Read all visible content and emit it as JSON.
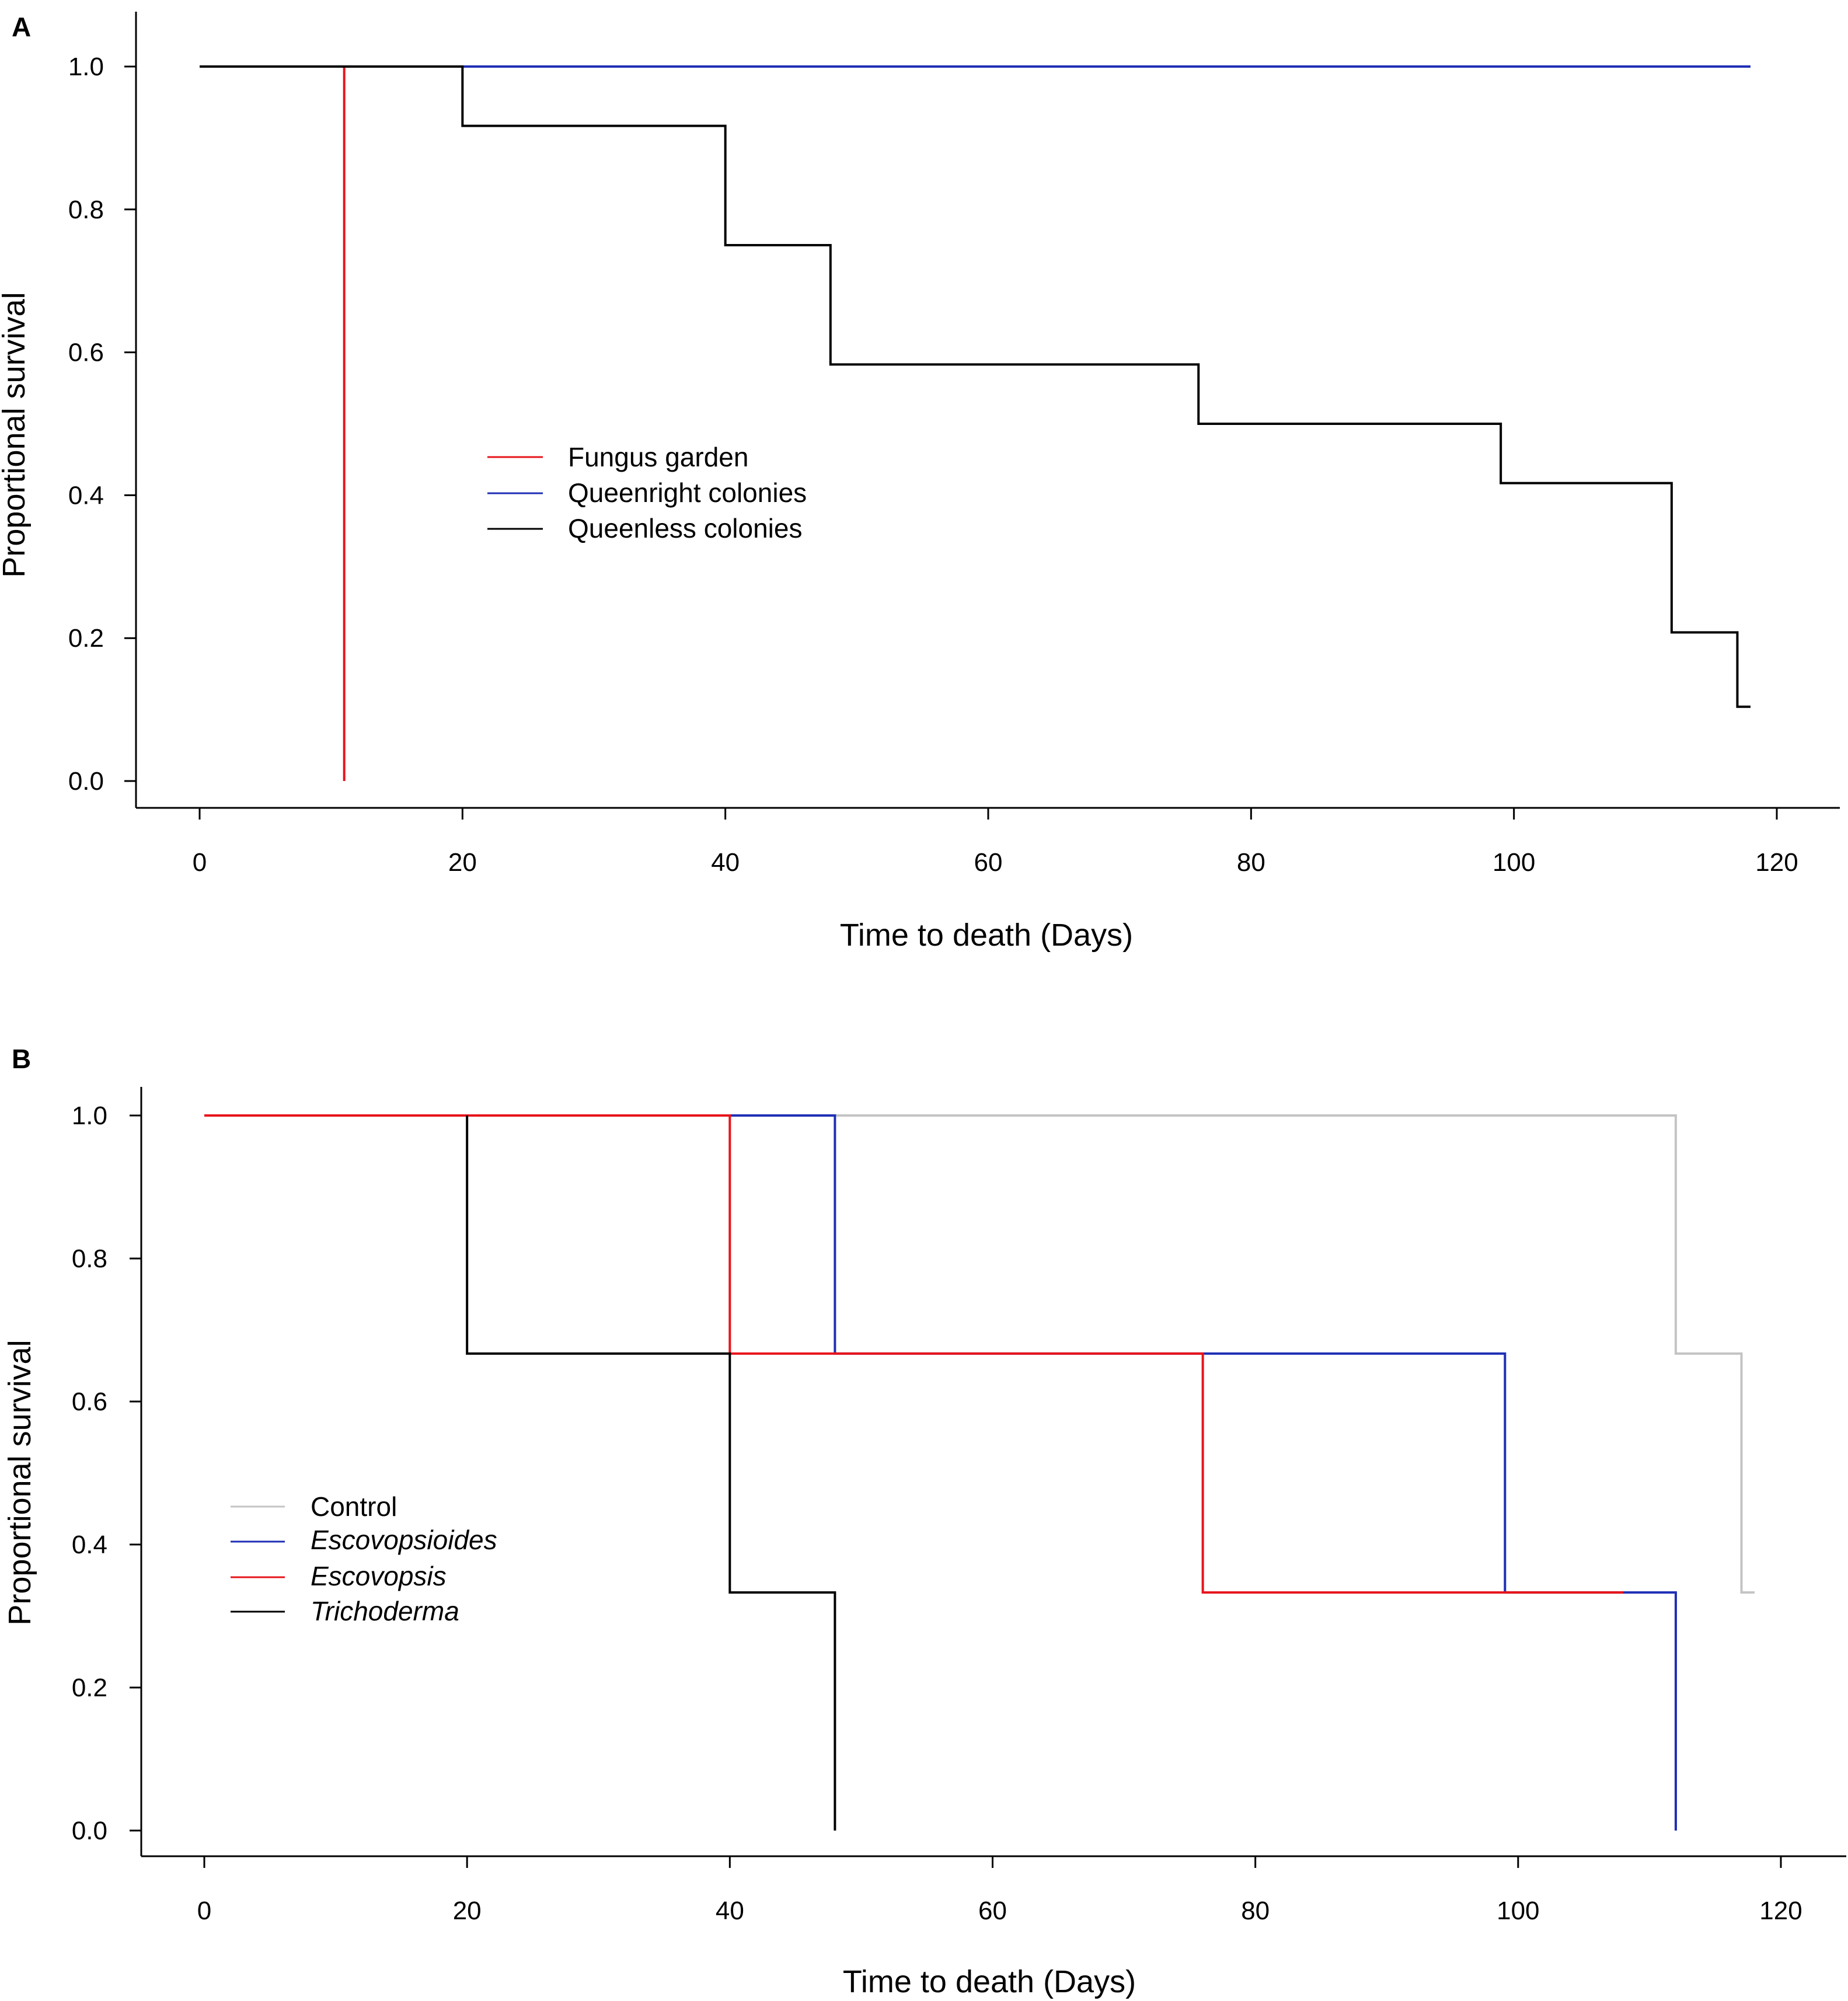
{
  "chart_data": [
    {
      "panel": "A",
      "type": "line",
      "subtype": "step (Kaplan-Meier survival)",
      "xlabel": "Time to death (Days)",
      "ylabel": "Proportional survival",
      "xlim": [
        0,
        120
      ],
      "ylim": [
        0,
        1
      ],
      "xticks": [
        0,
        20,
        40,
        60,
        80,
        100,
        120
      ],
      "yticks": [
        "0.0",
        "0.2",
        "0.4",
        "0.6",
        "0.8",
        "1.0"
      ],
      "legend_position": "center-left",
      "series": [
        {
          "name": "Fungus garden",
          "italic": false,
          "color": "#e8141b",
          "x": [
            0,
            11,
            11
          ],
          "y": [
            1.0,
            1.0,
            0.0
          ]
        },
        {
          "name": "Queenright colonies",
          "italic": false,
          "color": "#1f2fb5",
          "x": [
            0,
            118
          ],
          "y": [
            1.0,
            1.0
          ]
        },
        {
          "name": "Queenless colonies",
          "italic": false,
          "color": "#000000",
          "x": [
            0,
            20,
            40,
            48,
            76,
            99,
            112,
            117,
            118
          ],
          "y": [
            1.0,
            0.917,
            0.75,
            0.583,
            0.5,
            0.417,
            0.208,
            0.104,
            0.104
          ]
        }
      ]
    },
    {
      "panel": "B",
      "type": "line",
      "subtype": "step (Kaplan-Meier survival)",
      "xlabel": "Time to death (Days)",
      "ylabel": "Proportional survival",
      "xlim": [
        0,
        120
      ],
      "ylim": [
        0,
        1
      ],
      "xticks": [
        0,
        20,
        40,
        60,
        80,
        100,
        120
      ],
      "yticks": [
        "0.0",
        "0.2",
        "0.4",
        "0.6",
        "0.8",
        "1.0"
      ],
      "legend_position": "center-left",
      "series": [
        {
          "name": "Control",
          "italic": false,
          "color": "#c4c4c4",
          "x": [
            0,
            112,
            117,
            118
          ],
          "y": [
            1.0,
            0.667,
            0.333,
            0.333
          ]
        },
        {
          "name": "Escovopsioides",
          "italic": true,
          "color": "#1f2fb5",
          "x": [
            0,
            48,
            99,
            112,
            112
          ],
          "y": [
            1.0,
            0.667,
            0.333,
            0.333,
            0.0
          ]
        },
        {
          "name": "Escovopsis",
          "italic": true,
          "color": "#e8141b",
          "x": [
            0,
            40,
            76,
            108
          ],
          "y": [
            1.0,
            0.667,
            0.333,
            0.333
          ]
        },
        {
          "name": "Trichoderma",
          "italic": true,
          "color": "#000000",
          "x": [
            20,
            20,
            40,
            48,
            48
          ],
          "y": [
            1.0,
            0.667,
            0.333,
            0.0,
            0.0
          ]
        }
      ]
    }
  ]
}
